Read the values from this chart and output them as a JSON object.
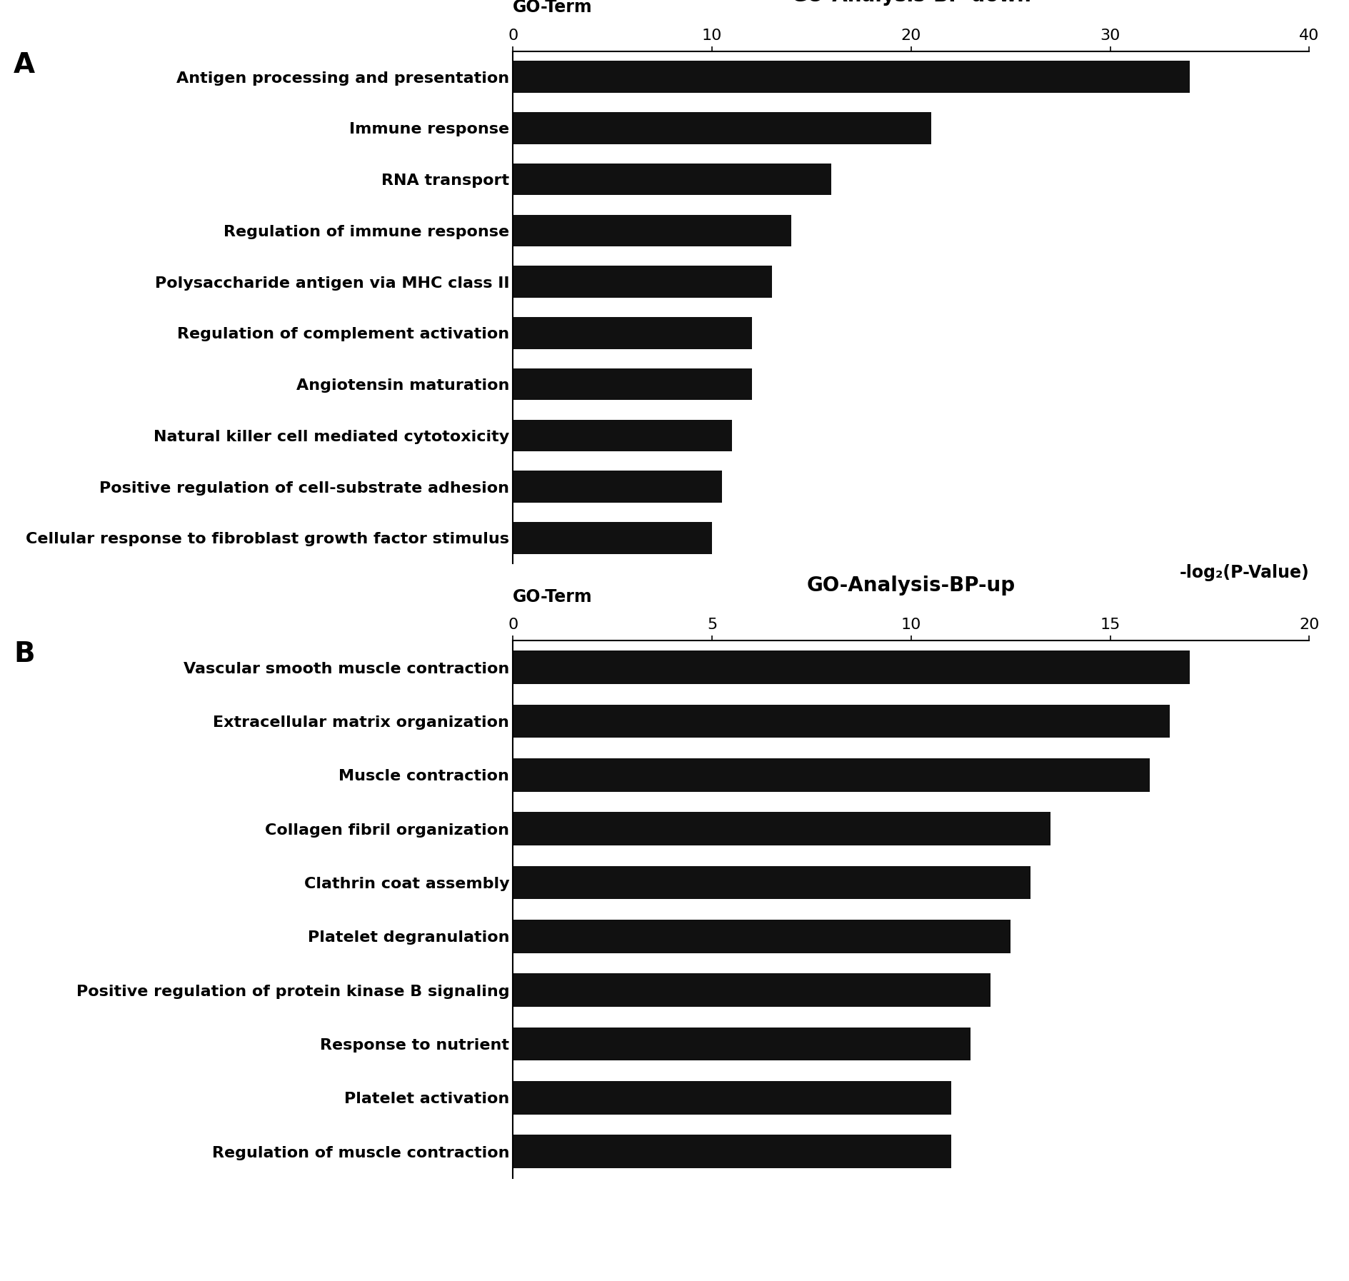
{
  "panel_a": {
    "title": "GO-Analysis-BP-down",
    "xlabel": "-log₂(P-Value)",
    "ylabel": "GO-Term",
    "xlim": [
      0,
      40
    ],
    "xticks": [
      0,
      10,
      20,
      30,
      40
    ],
    "categories": [
      "Cellular response to fibroblast growth factor stimulus",
      "Positive regulation of cell-substrate adhesion",
      "Natural killer cell mediated cytotoxicity",
      "Angiotensin maturation",
      "Regulation of complement activation",
      "Polysaccharide antigen via MHC class II",
      "Regulation of immune response",
      "RNA transport",
      "Immune response",
      "Antigen processing and presentation"
    ],
    "values": [
      10.0,
      10.5,
      11.0,
      12.0,
      12.0,
      13.0,
      14.0,
      16.0,
      21.0,
      34.0
    ],
    "bar_color": "#111111"
  },
  "panel_b": {
    "title": "GO-Analysis-BP-up",
    "xlabel": "-log₂(P-Value)",
    "ylabel": "GO-Term",
    "xlim": [
      0,
      20
    ],
    "xticks": [
      0,
      5,
      10,
      15,
      20
    ],
    "categories": [
      "Regulation of muscle contraction",
      "Platelet activation",
      "Response to nutrient",
      "Positive regulation of protein kinase B signaling",
      "Platelet degranulation",
      "Clathrin coat assembly",
      "Collagen fibril organization",
      "Muscle contraction",
      "Extracellular matrix organization",
      "Vascular smooth muscle contraction"
    ],
    "values": [
      11.0,
      11.0,
      11.5,
      12.0,
      12.5,
      13.0,
      13.5,
      16.0,
      16.5,
      17.0
    ],
    "bar_color": "#111111"
  },
  "figure_bg": "#ffffff",
  "label_a": "A",
  "label_b": "B",
  "title_fontsize": 20,
  "axis_label_fontsize": 17,
  "tick_fontsize": 16,
  "category_fontsize": 16,
  "bar_height": 0.62
}
